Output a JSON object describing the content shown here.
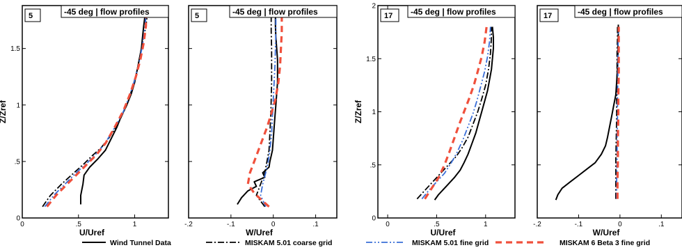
{
  "series_styles": [
    {
      "color": "#000000",
      "width": 2.0,
      "dash": ""
    },
    {
      "color": "#000000",
      "width": 1.8,
      "dash": "9,3,2,3"
    },
    {
      "color": "#3a6ed8",
      "width": 1.8,
      "dash": "9,3,2,3,2,3"
    },
    {
      "color": "#f0503c",
      "width": 3.2,
      "dash": "9,6"
    }
  ],
  "legend": [
    "Wind Tunnel Data",
    "MISKAM 5.01 coarse grid",
    "MISKAM 5.01 fine grid",
    "MISKAM 6 Beta 3 fine grid"
  ],
  "chart_data": [
    {
      "type": "line",
      "tag": "5",
      "title": "-45 deg | flow profiles",
      "xlabel": "U/Uref",
      "ylabel": "Z/Zref",
      "xlim": [
        0.0,
        1.3
      ],
      "ylim": [
        0.0,
        1.88
      ],
      "xticks": [
        0,
        0.5,
        1
      ],
      "yticks": [
        0,
        0.5,
        1,
        1.5
      ],
      "show_y_tick_labels": true,
      "series": [
        {
          "x": [
            0.52,
            0.52,
            0.54,
            0.55,
            0.6,
            0.67,
            0.74,
            0.79,
            0.84,
            0.88,
            0.93,
            0.97,
            1.0,
            1.02,
            1.04,
            1.06,
            1.07,
            1.08,
            1.09,
            1.09,
            1.09
          ],
          "y": [
            0.12,
            0.2,
            0.3,
            0.38,
            0.45,
            0.52,
            0.6,
            0.7,
            0.8,
            0.9,
            1.0,
            1.1,
            1.2,
            1.3,
            1.4,
            1.5,
            1.6,
            1.7,
            1.78,
            1.82,
            1.84
          ]
        },
        {
          "x": [
            0.18,
            0.25,
            0.35,
            0.46,
            0.55,
            0.62,
            0.7,
            0.78,
            0.86,
            0.93,
            0.98,
            1.02,
            1.05,
            1.08,
            1.1,
            1.11,
            1.1,
            1.1
          ],
          "y": [
            0.1,
            0.2,
            0.3,
            0.4,
            0.48,
            0.55,
            0.62,
            0.72,
            0.85,
            1.0,
            1.15,
            1.3,
            1.45,
            1.6,
            1.7,
            1.78,
            1.82,
            1.84
          ]
        },
        {
          "x": [
            0.2,
            0.28,
            0.38,
            0.48,
            0.57,
            0.65,
            0.73,
            0.81,
            0.89,
            0.95,
            1.0,
            1.04,
            1.07,
            1.09,
            1.1,
            1.1
          ],
          "y": [
            0.1,
            0.2,
            0.3,
            0.4,
            0.48,
            0.56,
            0.65,
            0.78,
            0.92,
            1.07,
            1.22,
            1.38,
            1.53,
            1.68,
            1.78,
            1.83
          ]
        },
        {
          "x": [
            0.22,
            0.3,
            0.4,
            0.5,
            0.58,
            0.66,
            0.74,
            0.82,
            0.9,
            0.96,
            1.01,
            1.05,
            1.08,
            1.1,
            1.1,
            1.09
          ],
          "y": [
            0.1,
            0.2,
            0.3,
            0.4,
            0.48,
            0.56,
            0.66,
            0.8,
            0.95,
            1.1,
            1.25,
            1.4,
            1.55,
            1.7,
            1.78,
            1.83
          ]
        }
      ]
    },
    {
      "type": "line",
      "tag": "5",
      "title": "-45 deg | flow profiles",
      "xlabel": "W/Uref",
      "ylabel": "",
      "xlim": [
        -0.2,
        0.15
      ],
      "ylim": [
        0.0,
        1.88
      ],
      "xticks": [
        -0.2,
        -0.1,
        0,
        0.1
      ],
      "yticks": [
        0,
        0.5,
        1,
        1.5
      ],
      "show_y_tick_labels": false,
      "series": [
        {
          "x": [
            -0.085,
            -0.075,
            -0.06,
            -0.04,
            -0.045,
            -0.02,
            -0.025,
            -0.01,
            -0.008,
            -0.005,
            -0.002,
            0.0,
            0.002,
            0.004,
            0.006,
            0.008,
            0.01,
            0.01,
            0.01,
            0.008,
            0.006,
            0.005,
            0.005
          ],
          "y": [
            0.12,
            0.18,
            0.24,
            0.28,
            0.32,
            0.36,
            0.4,
            0.45,
            0.5,
            0.55,
            0.6,
            0.7,
            0.8,
            0.9,
            1.0,
            1.1,
            1.2,
            1.3,
            1.4,
            1.5,
            1.6,
            1.7,
            1.82
          ]
        },
        {
          "x": [
            -0.02,
            -0.04,
            -0.03,
            -0.02,
            -0.015,
            -0.01,
            -0.008,
            -0.006,
            -0.005,
            -0.004,
            -0.004,
            -0.004,
            -0.005,
            -0.005
          ],
          "y": [
            0.1,
            0.2,
            0.3,
            0.4,
            0.5,
            0.6,
            0.75,
            0.9,
            1.05,
            1.2,
            1.35,
            1.5,
            1.65,
            1.82
          ]
        },
        {
          "x": [
            -0.018,
            -0.03,
            -0.025,
            -0.018,
            -0.012,
            -0.008,
            -0.004,
            -0.002,
            0.0,
            0.002,
            0.004,
            0.005,
            0.006,
            0.006
          ],
          "y": [
            0.1,
            0.2,
            0.3,
            0.4,
            0.5,
            0.6,
            0.75,
            0.9,
            1.05,
            1.2,
            1.35,
            1.5,
            1.65,
            1.82
          ]
        },
        {
          "x": [
            -0.01,
            -0.025,
            -0.045,
            -0.06,
            -0.055,
            -0.045,
            -0.035,
            -0.025,
            -0.015,
            -0.005,
            0.005,
            0.012,
            0.016,
            0.018,
            0.02,
            0.02
          ],
          "y": [
            0.1,
            0.15,
            0.22,
            0.3,
            0.4,
            0.5,
            0.6,
            0.7,
            0.8,
            0.92,
            1.05,
            1.2,
            1.35,
            1.5,
            1.65,
            1.8
          ]
        }
      ]
    },
    {
      "type": "line",
      "tag": "17",
      "title": "-45 deg | flow profiles",
      "xlabel": "U/Uref",
      "ylabel": "Z/Zref",
      "xlim": [
        -0.1,
        1.3
      ],
      "ylim": [
        0.0,
        2.0
      ],
      "xticks": [
        0,
        0.5,
        1
      ],
      "yticks": [
        0,
        0.5,
        1,
        1.5,
        2
      ],
      "show_y_tick_labels": true,
      "series": [
        {
          "x": [
            0.48,
            0.52,
            0.6,
            0.68,
            0.74,
            0.78,
            0.82,
            0.86,
            0.9,
            0.93,
            0.96,
            0.99,
            1.02,
            1.04,
            1.06,
            1.07,
            1.08,
            1.08,
            1.07
          ],
          "y": [
            0.17,
            0.22,
            0.3,
            0.38,
            0.45,
            0.52,
            0.6,
            0.7,
            0.8,
            0.9,
            1.0,
            1.1,
            1.2,
            1.3,
            1.4,
            1.5,
            1.6,
            1.7,
            1.8
          ]
        },
        {
          "x": [
            0.3,
            0.38,
            0.46,
            0.54,
            0.62,
            0.7,
            0.76,
            0.82,
            0.87,
            0.92,
            0.96,
            1.0,
            1.03,
            1.05,
            1.06,
            1.06
          ],
          "y": [
            0.18,
            0.26,
            0.34,
            0.42,
            0.5,
            0.58,
            0.66,
            0.76,
            0.88,
            1.0,
            1.12,
            1.25,
            1.4,
            1.55,
            1.7,
            1.8
          ]
        },
        {
          "x": [
            0.35,
            0.42,
            0.5,
            0.58,
            0.65,
            0.71,
            0.77,
            0.82,
            0.87,
            0.91,
            0.95,
            0.99,
            1.02,
            1.04,
            1.05
          ],
          "y": [
            0.18,
            0.26,
            0.34,
            0.42,
            0.52,
            0.62,
            0.74,
            0.86,
            0.98,
            1.1,
            1.24,
            1.38,
            1.52,
            1.66,
            1.8
          ]
        },
        {
          "x": [
            0.38,
            0.45,
            0.52,
            0.58,
            0.63,
            0.68,
            0.73,
            0.78,
            0.83,
            0.88,
            0.92,
            0.96,
            0.99,
            1.01
          ],
          "y": [
            0.18,
            0.28,
            0.38,
            0.5,
            0.62,
            0.75,
            0.88,
            1.0,
            1.12,
            1.25,
            1.38,
            1.52,
            1.66,
            1.8
          ]
        }
      ]
    },
    {
      "type": "line",
      "tag": "17",
      "title": "-45 deg | flow profiles",
      "xlabel": "W/Uref",
      "ylabel": "",
      "xlim": [
        -0.2,
        0.15
      ],
      "ylim": [
        0.0,
        2.0
      ],
      "xticks": [
        -0.2,
        -0.1,
        0,
        0.1
      ],
      "yticks": [
        0,
        0.5,
        1,
        1.5,
        2
      ],
      "show_y_tick_labels": false,
      "series": [
        {
          "x": [
            -0.155,
            -0.15,
            -0.14,
            -0.12,
            -0.1,
            -0.08,
            -0.06,
            -0.045,
            -0.035,
            -0.03,
            -0.025,
            -0.02,
            -0.015,
            -0.01,
            -0.008,
            -0.006,
            -0.005,
            -0.005,
            -0.004,
            -0.004
          ],
          "y": [
            0.17,
            0.22,
            0.28,
            0.34,
            0.4,
            0.46,
            0.52,
            0.6,
            0.68,
            0.76,
            0.86,
            0.96,
            1.06,
            1.16,
            1.28,
            1.4,
            1.52,
            1.64,
            1.74,
            1.82
          ]
        },
        {
          "x": [
            -0.01,
            -0.01,
            -0.01,
            -0.009,
            -0.008,
            -0.008,
            -0.007,
            -0.007,
            -0.006,
            -0.006
          ],
          "y": [
            0.18,
            0.35,
            0.55,
            0.75,
            0.95,
            1.15,
            1.35,
            1.55,
            1.7,
            1.8
          ]
        },
        {
          "x": [
            -0.008,
            -0.008,
            -0.007,
            -0.007,
            -0.006,
            -0.006,
            -0.005,
            -0.005,
            -0.004,
            -0.004
          ],
          "y": [
            0.18,
            0.35,
            0.55,
            0.75,
            0.95,
            1.15,
            1.35,
            1.55,
            1.7,
            1.8
          ]
        },
        {
          "x": [
            -0.006,
            -0.006,
            -0.005,
            -0.005,
            -0.004,
            -0.004,
            -0.003,
            -0.003,
            -0.003,
            -0.003
          ],
          "y": [
            0.18,
            0.35,
            0.55,
            0.75,
            0.95,
            1.15,
            1.35,
            1.55,
            1.7,
            1.8
          ]
        }
      ]
    }
  ]
}
